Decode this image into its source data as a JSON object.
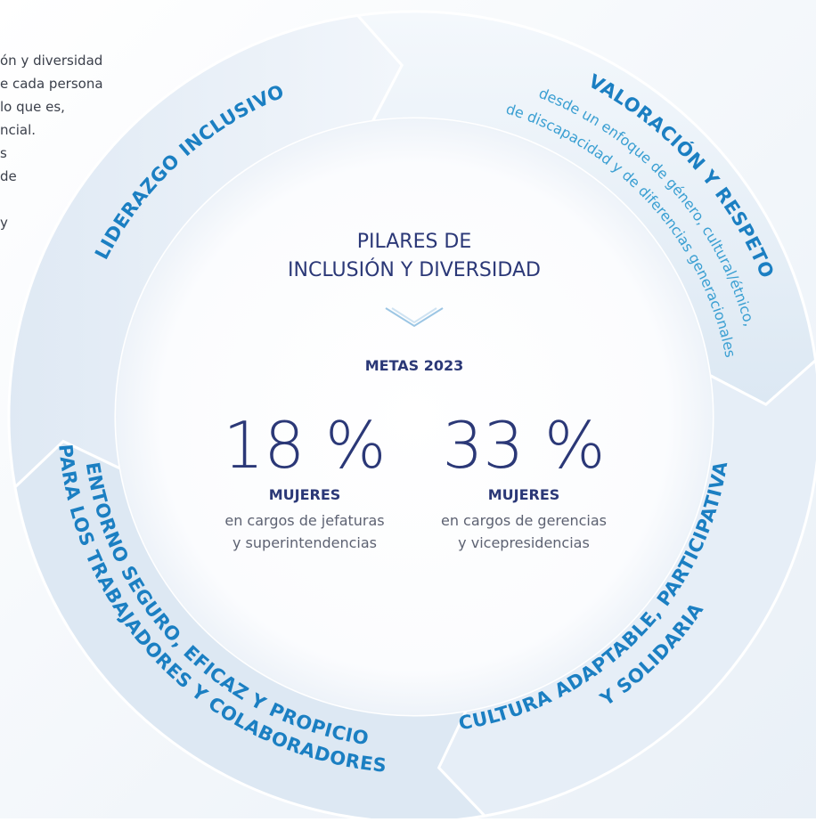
{
  "intro_fragment": [
    "ón y diversidad",
    "e cada persona",
    "lo que es,",
    "ncial.",
    "s",
    "de",
    "y"
  ],
  "ring": [
    {
      "lines": [
        "LIDERAZGO INCLUSIVO"
      ]
    },
    {
      "lines": [
        "VALORACIÓN Y RESPETO",
        "desde un enfoque de género, cultural/étnico,",
        "de discapacidad y de diferencias generacionales"
      ]
    },
    {
      "lines": [
        "CULTURA ADAPTABLE, PARTICIPATIVA",
        "Y SOLIDARIA"
      ]
    },
    {
      "lines": [
        "ENTORNO SEGURO, EFICAZ Y PROPICIO",
        "PARA LOS TRABAJADORES Y COLABORADORES"
      ]
    }
  ],
  "center": {
    "title_lines": [
      "PILARES DE",
      "INCLUSIÓN Y DIVERSIDAD"
    ],
    "metas_label": "METAS 2023",
    "goals": [
      {
        "value": "18 %",
        "label": "MUJERES",
        "desc_lines": [
          "en cargos de jefaturas",
          "y superintendencias"
        ]
      },
      {
        "value": "33 %",
        "label": "MUJERES",
        "desc_lines": [
          "en cargos de gerencias",
          "y vicepresidencias"
        ]
      }
    ]
  }
}
